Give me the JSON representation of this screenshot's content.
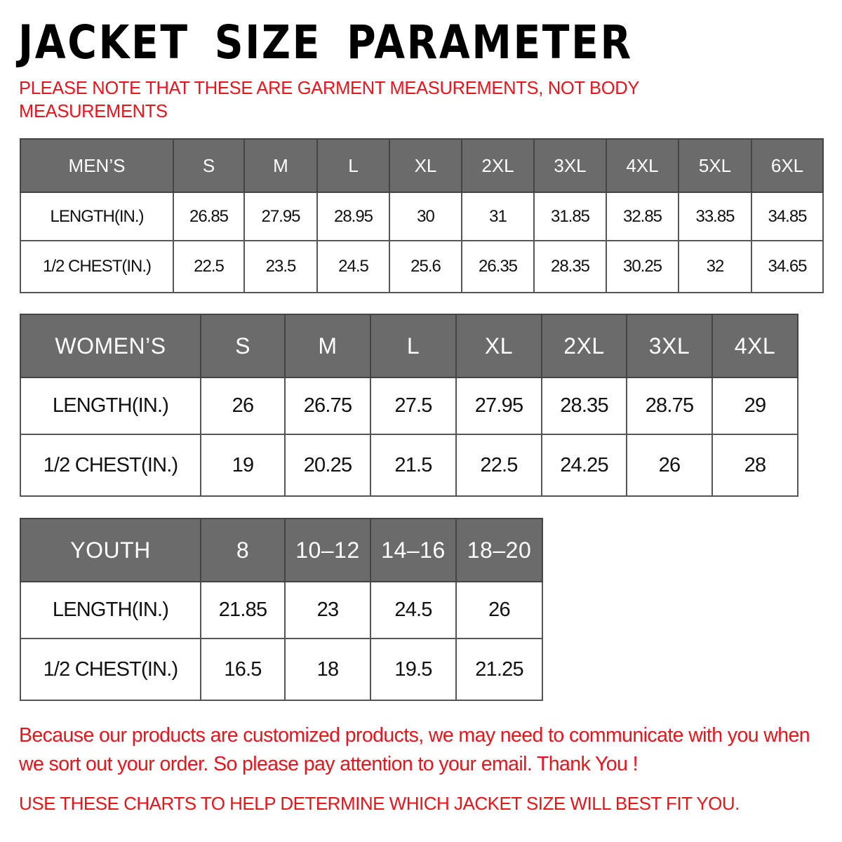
{
  "title": "JACKET SIZE PARAMETER",
  "note": "PLEASE NOTE THAT THESE ARE GARMENT MEASUREMENTS, NOT BODY MEASUREMENTS",
  "colors": {
    "header_bg": "#6b6b6b",
    "accent_red": "#e8141b"
  },
  "tables": {
    "men": {
      "header": [
        "MEN’S",
        "S",
        "M",
        "L",
        "XL",
        "2XL",
        "3XL",
        "4XL",
        "5XL",
        "6XL"
      ],
      "rows": [
        [
          "LENGTH(IN.)",
          "26.85",
          "27.95",
          "28.95",
          "30",
          "31",
          "31.85",
          "32.85",
          "33.85",
          "34.85"
        ],
        [
          "1/2 CHEST(IN.)",
          "22.5",
          "23.5",
          "24.5",
          "25.6",
          "26.35",
          "28.35",
          "30.25",
          "32",
          "34.65"
        ]
      ]
    },
    "women": {
      "header": [
        "WOMEN’S",
        "S",
        "M",
        "L",
        "XL",
        "2XL",
        "3XL",
        "4XL"
      ],
      "rows": [
        [
          "LENGTH(IN.)",
          "26",
          "26.75",
          "27.5",
          "27.95",
          "28.35",
          "28.75",
          "29"
        ],
        [
          "1/2 CHEST(IN.)",
          "19",
          "20.25",
          "21.5",
          "22.5",
          "24.25",
          "26",
          "28"
        ]
      ]
    },
    "youth": {
      "header": [
        "YOUTH",
        "8",
        "10–12",
        "14–16",
        "18–20"
      ],
      "rows": [
        [
          "LENGTH(IN.)",
          "21.85",
          "23",
          "24.5",
          "26"
        ],
        [
          "1/2 CHEST(IN.)",
          "16.5",
          "18",
          "19.5",
          "21.25"
        ]
      ]
    }
  },
  "footer": {
    "message": "Because our products are customized products, we may need to communicate with you when we sort out your order. So please pay attention to your email. Thank You !",
    "instruction": "USE THESE CHARTS TO HELP DETERMINE WHICH JACKET SIZE WILL BEST FIT YOU."
  }
}
